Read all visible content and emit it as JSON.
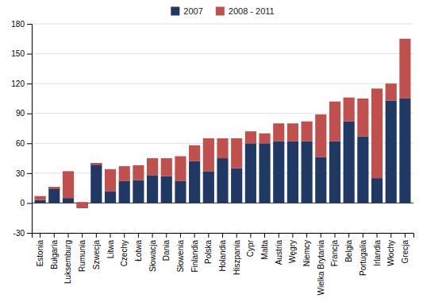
{
  "chart_data": {
    "type": "bar",
    "stacked": true,
    "categories": [
      "Estonia",
      "Bułgaria",
      "Luksemburg",
      "Rumunia",
      "Szwecja",
      "Litwa",
      "Czechy",
      "Łotwa",
      "Słowacja",
      "Dania",
      "Słowenia",
      "Finlandia",
      "Polska",
      "Holandia",
      "Hiszpania",
      "Cypr",
      "Malta",
      "Austria",
      "Węgry",
      "Niemcy",
      "Wielka Brytania",
      "Francja",
      "Belgia",
      "Portugalia",
      "Irlandia",
      "Włochy",
      "Grecja"
    ],
    "series": [
      {
        "name": "2007",
        "color": "#1f3864",
        "values": [
          3,
          16,
          5,
          -5,
          40,
          12,
          22,
          23,
          28,
          27,
          22,
          42,
          32,
          45,
          35,
          60,
          60,
          62,
          62,
          62,
          46,
          62,
          82,
          67,
          25,
          103,
          105
        ]
      },
      {
        "name": "2008 - 2011",
        "color": "#c0504d",
        "values": [
          4,
          -2,
          27,
          6,
          -2,
          22,
          15,
          15,
          17,
          18,
          25,
          16,
          33,
          20,
          30,
          12,
          10,
          18,
          18,
          20,
          43,
          40,
          24,
          38,
          90,
          17,
          60
        ]
      }
    ],
    "ylim": [
      -30,
      180
    ],
    "yticks": [
      -30,
      0,
      30,
      60,
      90,
      120,
      150,
      180
    ],
    "grid": true,
    "legend": "top"
  }
}
